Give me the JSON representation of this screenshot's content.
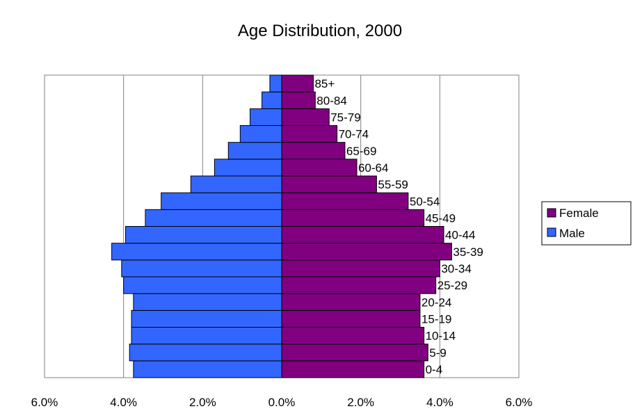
{
  "chart_data": {
    "type": "bar",
    "orientation": "horizontal",
    "subtype": "population-pyramid",
    "title": "Age Distribution, 2000",
    "xlabel": "",
    "ylabel": "",
    "xlim": [
      -6.0,
      6.0
    ],
    "x_ticks": [
      -6.0,
      -4.0,
      -2.0,
      0.0,
      2.0,
      4.0,
      6.0
    ],
    "x_tick_labels": [
      "6.0%",
      "4.0%",
      "2.0%",
      "0.0%",
      "2.0%",
      "4.0%",
      "6.0%"
    ],
    "grid": "vertical gridlines at major ticks",
    "legend_position": "right",
    "categories": [
      "0-4",
      "5-9",
      "10-14",
      "15-19",
      "20-24",
      "25-29",
      "30-34",
      "35-39",
      "40-44",
      "45-49",
      "50-54",
      "55-59",
      "60-64",
      "65-69",
      "70-74",
      "75-79",
      "80-84",
      "85+"
    ],
    "series": [
      {
        "name": "Female",
        "color": "#800080",
        "side": "right",
        "values": [
          3.6,
          3.7,
          3.6,
          3.5,
          3.5,
          3.9,
          4.0,
          4.3,
          4.1,
          3.6,
          3.2,
          2.4,
          1.9,
          1.6,
          1.4,
          1.2,
          0.85,
          0.8
        ]
      },
      {
        "name": "Male",
        "color": "#3366FF",
        "side": "left",
        "values": [
          3.75,
          3.85,
          3.8,
          3.8,
          3.75,
          4.0,
          4.05,
          4.3,
          3.95,
          3.45,
          3.05,
          2.3,
          1.7,
          1.35,
          1.05,
          0.8,
          0.5,
          0.3
        ]
      }
    ]
  }
}
